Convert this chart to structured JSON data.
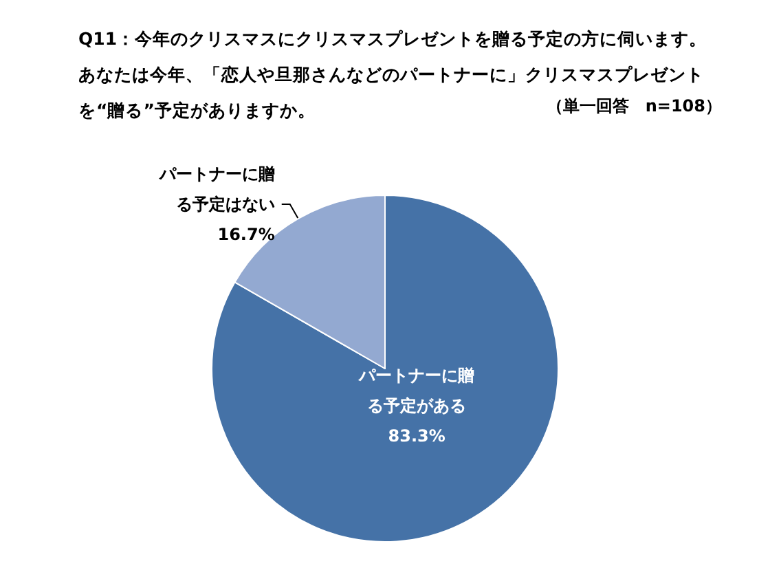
{
  "chart_data": {
    "type": "pie",
    "title": "Q11：今年のクリスマスにクリスマスプレゼントを贈る予定の方に伺います。あなたは今年、「恋人や旦那さんなどのパートナーに」クリスマスプレゼントを“贈る”予定がありますか。",
    "subtitle": "（単一回答　n=108）",
    "categories": [
      "パートナーに贈る予定がある",
      "パートナーに贈る予定はない"
    ],
    "values": [
      83.3,
      16.7
    ],
    "value_labels": [
      "83.3%",
      "16.7%"
    ],
    "colors": [
      "#4572a7",
      "#93a9d1"
    ],
    "legend": false
  }
}
